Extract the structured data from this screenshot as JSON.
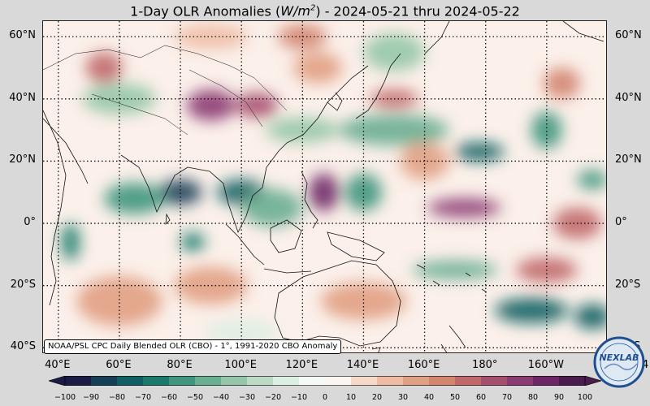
{
  "title": {
    "prefix": "1-Day OLR Anomalies (",
    "unit_main": "W/m",
    "unit_exp": "2",
    "suffix": ") - 2024-05-21 thru 2024-05-22"
  },
  "latitude_labels": [
    "60°N",
    "40°N",
    "20°N",
    "0°",
    "20°S",
    "40°S"
  ],
  "longitude_labels": [
    "40°E",
    "60°E",
    "80°E",
    "100°E",
    "120°E",
    "140°E",
    "160°E",
    "180°",
    "160°W",
    "14"
  ],
  "source_note": "NOAA/PSL CPC Daily Blended OLR (CBO) - 1°, 1991-2020 CBO Anomaly",
  "colorbar": {
    "ticks": [
      "−100",
      "−90",
      "−80",
      "−70",
      "−60",
      "−50",
      "−40",
      "−30",
      "−20",
      "−10",
      "0",
      "10",
      "20",
      "30",
      "40",
      "50",
      "60",
      "70",
      "80",
      "90",
      "100"
    ],
    "colors": [
      "#1b1b45",
      "#153f57",
      "#0f5f63",
      "#1a7a6b",
      "#3f957d",
      "#6aae91",
      "#95c6a9",
      "#bcdac4",
      "#ddeee2",
      "#f6faf7",
      "#fdf5ef",
      "#f6d9c8",
      "#eebca5",
      "#e1a083",
      "#d38570",
      "#c0686a",
      "#a64e6e",
      "#8c3a72",
      "#6e2766",
      "#4c1b4d"
    ]
  },
  "map": {
    "lat_range": [
      -42,
      65
    ],
    "lon_range": [
      35,
      220
    ],
    "lat_grid": [
      60,
      40,
      20,
      0,
      -20,
      -40
    ],
    "lon_grid": [
      40,
      60,
      80,
      100,
      120,
      140,
      160,
      180,
      200
    ],
    "anomaly_blobs": [
      {
        "lon": 80,
        "lat": 10,
        "value": -85,
        "rlon": 7,
        "rlat": 4
      },
      {
        "lon": 100,
        "lat": 10,
        "value": -75,
        "rlon": 8,
        "rlat": 4
      },
      {
        "lon": 65,
        "lat": 8,
        "value": -60,
        "rlon": 10,
        "rlat": 5
      },
      {
        "lon": 44,
        "lat": -6,
        "value": -70,
        "rlon": 3,
        "rlat": 6
      },
      {
        "lon": 84,
        "lat": -6,
        "value": -65,
        "rlon": 4,
        "rlat": 3
      },
      {
        "lon": 110,
        "lat": 5,
        "value": -45,
        "rlon": 10,
        "rlat": 6
      },
      {
        "lon": 140,
        "lat": 10,
        "value": -55,
        "rlon": 6,
        "rlat": 6
      },
      {
        "lon": 178,
        "lat": 23,
        "value": -75,
        "rlon": 8,
        "rlat": 3
      },
      {
        "lon": 200,
        "lat": 30,
        "value": -55,
        "rlon": 5,
        "rlat": 6
      },
      {
        "lon": 215,
        "lat": 14,
        "value": -60,
        "rlon": 5,
        "rlat": 3
      },
      {
        "lon": 150,
        "lat": 30,
        "value": -45,
        "rlon": 18,
        "rlat": 5
      },
      {
        "lon": 120,
        "lat": 30,
        "value": -40,
        "rlon": 12,
        "rlat": 4
      },
      {
        "lon": 170,
        "lat": -15,
        "value": -50,
        "rlon": 14,
        "rlat": 3
      },
      {
        "lon": 195,
        "lat": -28,
        "value": -80,
        "rlon": 12,
        "rlat": 4
      },
      {
        "lon": 215,
        "lat": -30,
        "value": -75,
        "rlon": 6,
        "rlat": 4
      },
      {
        "lon": 150,
        "lat": 55,
        "value": -40,
        "rlon": 10,
        "rlat": 6
      },
      {
        "lon": 60,
        "lat": 40,
        "value": -35,
        "rlon": 12,
        "rlat": 5
      },
      {
        "lon": 100,
        "lat": -35,
        "value": -20,
        "rlon": 12,
        "rlat": 4
      },
      {
        "lon": 90,
        "lat": 38,
        "value": 75,
        "rlon": 8,
        "rlat": 5
      },
      {
        "lon": 105,
        "lat": 38,
        "value": 60,
        "rlon": 7,
        "rlat": 4
      },
      {
        "lon": 127,
        "lat": 10,
        "value": 80,
        "rlon": 5,
        "rlat": 6
      },
      {
        "lon": 173,
        "lat": 5,
        "value": 75,
        "rlon": 12,
        "rlat": 3
      },
      {
        "lon": 150,
        "lat": 40,
        "value": 55,
        "rlon": 8,
        "rlat": 3
      },
      {
        "lon": 55,
        "lat": 50,
        "value": 55,
        "rlon": 6,
        "rlat": 5
      },
      {
        "lon": 120,
        "lat": 60,
        "value": 45,
        "rlon": 8,
        "rlat": 4
      },
      {
        "lon": 210,
        "lat": 0,
        "value": 50,
        "rlon": 8,
        "rlat": 5
      },
      {
        "lon": 200,
        "lat": -15,
        "value": 50,
        "rlon": 10,
        "rlat": 4
      },
      {
        "lon": 140,
        "lat": -25,
        "value": 35,
        "rlon": 14,
        "rlat": 6
      },
      {
        "lon": 60,
        "lat": -25,
        "value": 35,
        "rlon": 14,
        "rlat": 8
      },
      {
        "lon": 90,
        "lat": -20,
        "value": 30,
        "rlon": 12,
        "rlat": 6
      },
      {
        "lon": 160,
        "lat": 20,
        "value": 35,
        "rlon": 8,
        "rlat": 6
      },
      {
        "lon": 205,
        "lat": 45,
        "value": 45,
        "rlon": 6,
        "rlat": 5
      },
      {
        "lon": 125,
        "lat": 50,
        "value": 30,
        "rlon": 8,
        "rlat": 5
      },
      {
        "lon": 90,
        "lat": 60,
        "value": 25,
        "rlon": 12,
        "rlat": 4
      }
    ]
  },
  "logo": {
    "text": "NEXLAB",
    "ring_color": "#1f4f8f",
    "fill_color": "#dfe9f4"
  }
}
